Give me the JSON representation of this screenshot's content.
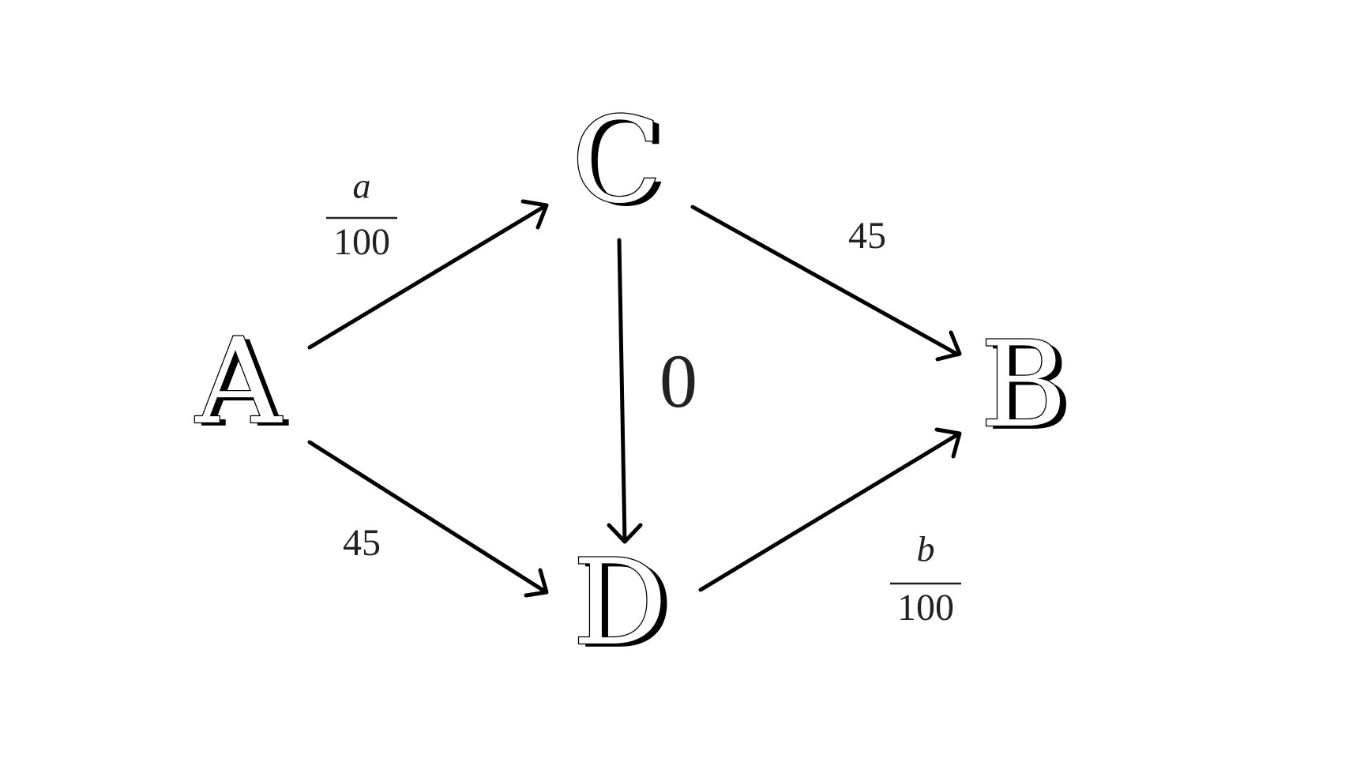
{
  "nodes": {
    "a": "A",
    "b": "B",
    "c": "C",
    "d": "D"
  },
  "edges": {
    "a_to_c": {
      "numerator": "a",
      "denominator": "100"
    },
    "c_to_b": {
      "label": "45"
    },
    "c_to_d": {
      "label": "0"
    },
    "a_to_d": {
      "label": "45"
    },
    "d_to_b": {
      "numerator": "b",
      "denominator": "100"
    }
  },
  "colors": {
    "stroke": "#000000",
    "label_text": "#222222",
    "background": "#ffffff"
  }
}
